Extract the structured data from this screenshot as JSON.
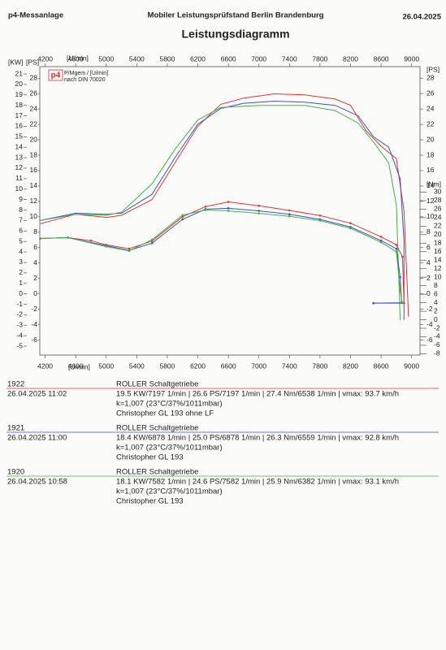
{
  "header": {
    "left": "p4-Messanlage",
    "center": "Mobiler Leistungsprüfstand Berlin Brandenburg",
    "date": "26.04.2025",
    "title": "Leistungsdiagramm"
  },
  "chart_data": {
    "type": "line",
    "kw_label": "[KW]",
    "ps_label": "[PS]",
    "x_label": "[U/min]",
    "nm_label": "[Nm]",
    "logo": "p4",
    "legend_lines": [
      "P/Mgem / [U/min]",
      "nach DIN 70020"
    ],
    "xlim": [
      4130,
      9110
    ],
    "xticks": [
      4200,
      4600,
      5000,
      5400,
      5800,
      6200,
      6600,
      7000,
      7400,
      7800,
      8200,
      8600,
      9000
    ],
    "ylim": [
      -5.85,
      21.7
    ],
    "yticks": [
      -5,
      -4,
      -3,
      -2,
      -1,
      0,
      1,
      2,
      3,
      4,
      5,
      6,
      7,
      8,
      9,
      10,
      11,
      12,
      13,
      14,
      15,
      16,
      17,
      18,
      19,
      20,
      21
    ],
    "y3lim": [
      -7.95,
      29.5
    ],
    "y3ticks": [
      -6,
      -4,
      -2,
      0,
      2,
      4,
      6,
      8,
      10,
      12,
      14,
      16,
      18,
      20,
      22,
      24,
      26,
      28
    ],
    "y2lim": [
      -8.3,
      59.5
    ],
    "y2ticks": [
      -8,
      -6,
      -4,
      -2,
      0,
      2,
      4,
      6,
      8,
      10,
      12,
      14,
      16,
      18,
      20,
      22,
      24,
      26,
      28,
      30
    ],
    "grid": false,
    "series": [
      {
        "color": "#e03535",
        "x": [
          4136,
          4600,
          5000,
          5200,
          5600,
          5900,
          6200,
          6500,
          6800,
          7200,
          7600,
          8000,
          8200,
          8400,
          8600,
          8800,
          8900,
          8960
        ],
        "values": [
          6.7,
          7.6,
          7.3,
          7.5,
          9.0,
          12.5,
          16.0,
          18.1,
          18.7,
          19.1,
          19.0,
          18.6,
          18.0,
          15.6,
          14.1,
          12.9,
          7.9,
          -2.2
        ]
      },
      {
        "color": "#3a55c0",
        "x": [
          4136,
          4600,
          5000,
          5200,
          5600,
          5900,
          6200,
          6500,
          6800,
          7200,
          7600,
          8000,
          8300,
          8500,
          8700,
          8850,
          8900,
          8900
        ],
        "values": [
          7.0,
          7.7,
          7.6,
          7.7,
          9.5,
          13.0,
          16.2,
          17.7,
          18.2,
          18.4,
          18.3,
          18.0,
          17.0,
          15.0,
          14.0,
          11.0,
          5.0,
          -2.5
        ]
      },
      {
        "color": "#45b045",
        "x": [
          4136,
          4600,
          5000,
          5200,
          5600,
          5900,
          6200,
          6500,
          7000,
          7600,
          8000,
          8300,
          8500,
          8700,
          8800,
          8850
        ],
        "values": [
          7.0,
          7.6,
          7.5,
          7.8,
          10.5,
          13.8,
          16.6,
          17.8,
          18.0,
          18.0,
          17.5,
          16.3,
          14.5,
          12.5,
          8.5,
          -2.5
        ]
      },
      {
        "color": "#e03535",
        "axis": "y2",
        "x": [
          4136,
          4500,
          4800,
          5000,
          5300,
          5600,
          6000,
          6300,
          6600,
          7000,
          7400,
          7800,
          8200,
          8600,
          8800,
          8880,
          8900,
          8500
        ],
        "values": [
          19.1,
          19.3,
          18.6,
          17.6,
          16.7,
          18.5,
          24.2,
          26.6,
          27.7,
          26.8,
          25.7,
          24.5,
          22.7,
          19.5,
          17.6,
          14.8,
          3.9,
          3.9
        ]
      },
      {
        "color": "#3a55c0",
        "axis": "y2",
        "x": [
          4136,
          4500,
          5000,
          5300,
          5600,
          6000,
          6300,
          6600,
          7000,
          7400,
          7800,
          8200,
          8600,
          8800,
          8850,
          8870,
          8500
        ],
        "values": [
          19.1,
          19.3,
          17.4,
          16.3,
          18.0,
          23.6,
          26.0,
          26.2,
          25.6,
          24.8,
          23.6,
          21.8,
          18.6,
          16.7,
          10.0,
          4.0,
          3.9
        ]
      },
      {
        "color": "#45b045",
        "axis": "y2",
        "x": [
          4136,
          4500,
          5000,
          5300,
          5600,
          6000,
          6300,
          6600,
          7000,
          7400,
          7800,
          8200,
          8600,
          8800,
          8850,
          8870
        ],
        "values": [
          19.1,
          19.3,
          17.2,
          16.2,
          18.8,
          24.6,
          25.8,
          25.6,
          25.0,
          24.3,
          23.3,
          21.5,
          18.2,
          16.0,
          7.0,
          4.2
        ]
      }
    ]
  },
  "runs": [
    {
      "id": "1922",
      "date": "26.04.2025  11:02",
      "color": "#e03535",
      "lines": [
        "ROLLER Schaltgetriebe",
        "19.5 KW/7197 1/min  |  26.6 PS/7197 1/min  |  27.4 Nm/6538 1/min | vmax: 93.7 km/h",
        "k=1,007 (23°C/37%/1011mbar)",
        "Christopher GL 193 ohne LF"
      ]
    },
    {
      "id": "1921",
      "date": "26.04.2025  11:00",
      "color": "#3a55c0",
      "lines": [
        "ROLLER Schaltgetriebe",
        "18.4 KW/6878 1/min  |  25.0 PS/6878 1/min  |  26.3 Nm/6559 1/min | vmax: 92.8 km/h",
        "k=1,007 (23°C/37%/1011mbar)",
        "Christopher GL 193"
      ]
    },
    {
      "id": "1920",
      "date": "26.04.2025  10:58",
      "color": "#45b045",
      "lines": [
        "ROLLER Schaltgetriebe",
        "18.1 KW/7582 1/min  |  24.6 PS/7582 1/min  |  25.9 Nm/6382 1/min | vmax: 93.1 km/h",
        "k=1,007 (23°C/37%/1011mbar)",
        "Christopher GL 193"
      ]
    }
  ]
}
